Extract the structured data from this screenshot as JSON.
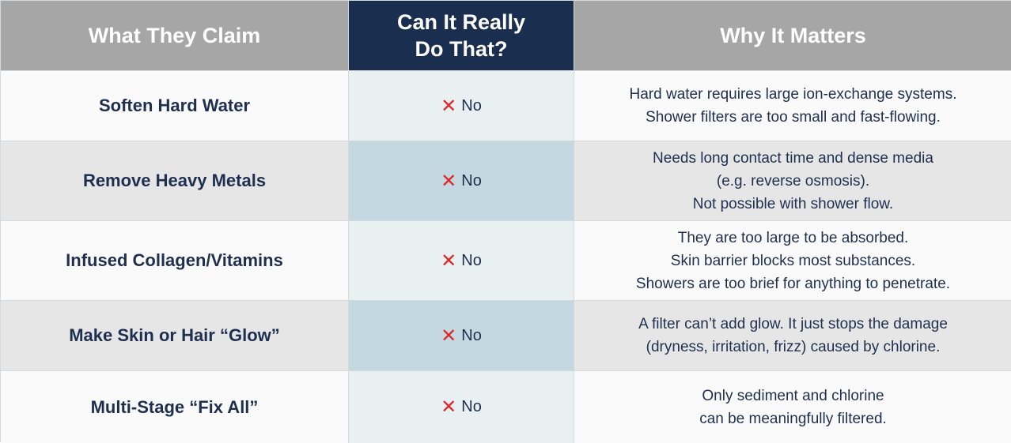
{
  "header": {
    "col1": "What They Claim",
    "col2_line1": "Can It Really",
    "col2_line2": "Do That?",
    "col3": "Why It Matters"
  },
  "rows": [
    {
      "claim": "Soften Hard Water",
      "verdict": "No",
      "why": [
        "Hard water requires large ion-exchange systems.",
        "Shower filters are too small and fast-flowing."
      ]
    },
    {
      "claim": "Remove Heavy Metals",
      "verdict": "No",
      "why": [
        "Needs long contact time and dense media",
        "(e.g. reverse osmosis).",
        "Not possible with shower flow."
      ]
    },
    {
      "claim": "Infused Collagen/Vitamins",
      "verdict": "No",
      "why": [
        "They are too large to be absorbed.",
        "Skin barrier blocks most substances.",
        "Showers are too brief for anything to penetrate."
      ]
    },
    {
      "claim": "Make Skin or Hair “Glow”",
      "verdict": "No",
      "why": [
        "A filter can’t add glow. It just stops the damage",
        "(dryness, irritation, frizz) caused by chlorine."
      ]
    },
    {
      "claim": "Multi-Stage “Fix All”",
      "verdict": "No",
      "why": [
        "Only sediment and chlorine",
        "can be meaningfully filtered."
      ]
    }
  ],
  "icons": {
    "verdict_icon": "cross-icon"
  },
  "colors": {
    "header_grey": "#a6a6a6",
    "header_navy": "#1a2e4f",
    "cross_red": "#e02727",
    "text_navy": "#1f2f4f"
  }
}
